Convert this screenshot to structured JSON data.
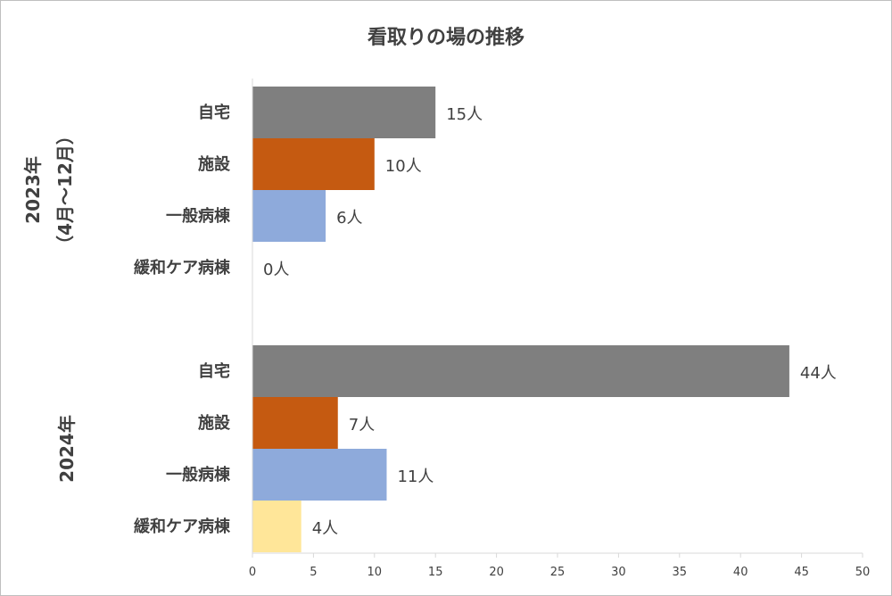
{
  "chart_data": {
    "type": "bar",
    "orientation": "horizontal",
    "title": "看取りの場の推移",
    "groups": [
      {
        "label": "2023年",
        "sublabel": "（4月～12月）",
        "bars": [
          {
            "category": "自宅",
            "value": 15,
            "label": "15人"
          },
          {
            "category": "施設",
            "value": 10,
            "label": "10人"
          },
          {
            "category": "一般病棟",
            "value": 6,
            "label": "6人"
          },
          {
            "category": "緩和ケア病棟",
            "value": 0,
            "label": "0人"
          }
        ]
      },
      {
        "label": "2024年",
        "sublabel": "",
        "bars": [
          {
            "category": "自宅",
            "value": 44,
            "label": "44人"
          },
          {
            "category": "施設",
            "value": 7,
            "label": "7人"
          },
          {
            "category": "一般病棟",
            "value": 11,
            "label": "11人"
          },
          {
            "category": "緩和ケア病棟",
            "value": 4,
            "label": "4人"
          }
        ]
      }
    ],
    "category_colors": {
      "自宅": "#7f7f7f",
      "施設": "#c55a11",
      "一般病棟": "#8eaadb",
      "緩和ケア病棟": "#ffe699"
    },
    "xlim": [
      0,
      50
    ],
    "xticks": [
      "0",
      "5",
      "10",
      "15",
      "20",
      "25",
      "30",
      "35",
      "40",
      "45",
      "50"
    ],
    "grid": false,
    "legend": "none"
  }
}
